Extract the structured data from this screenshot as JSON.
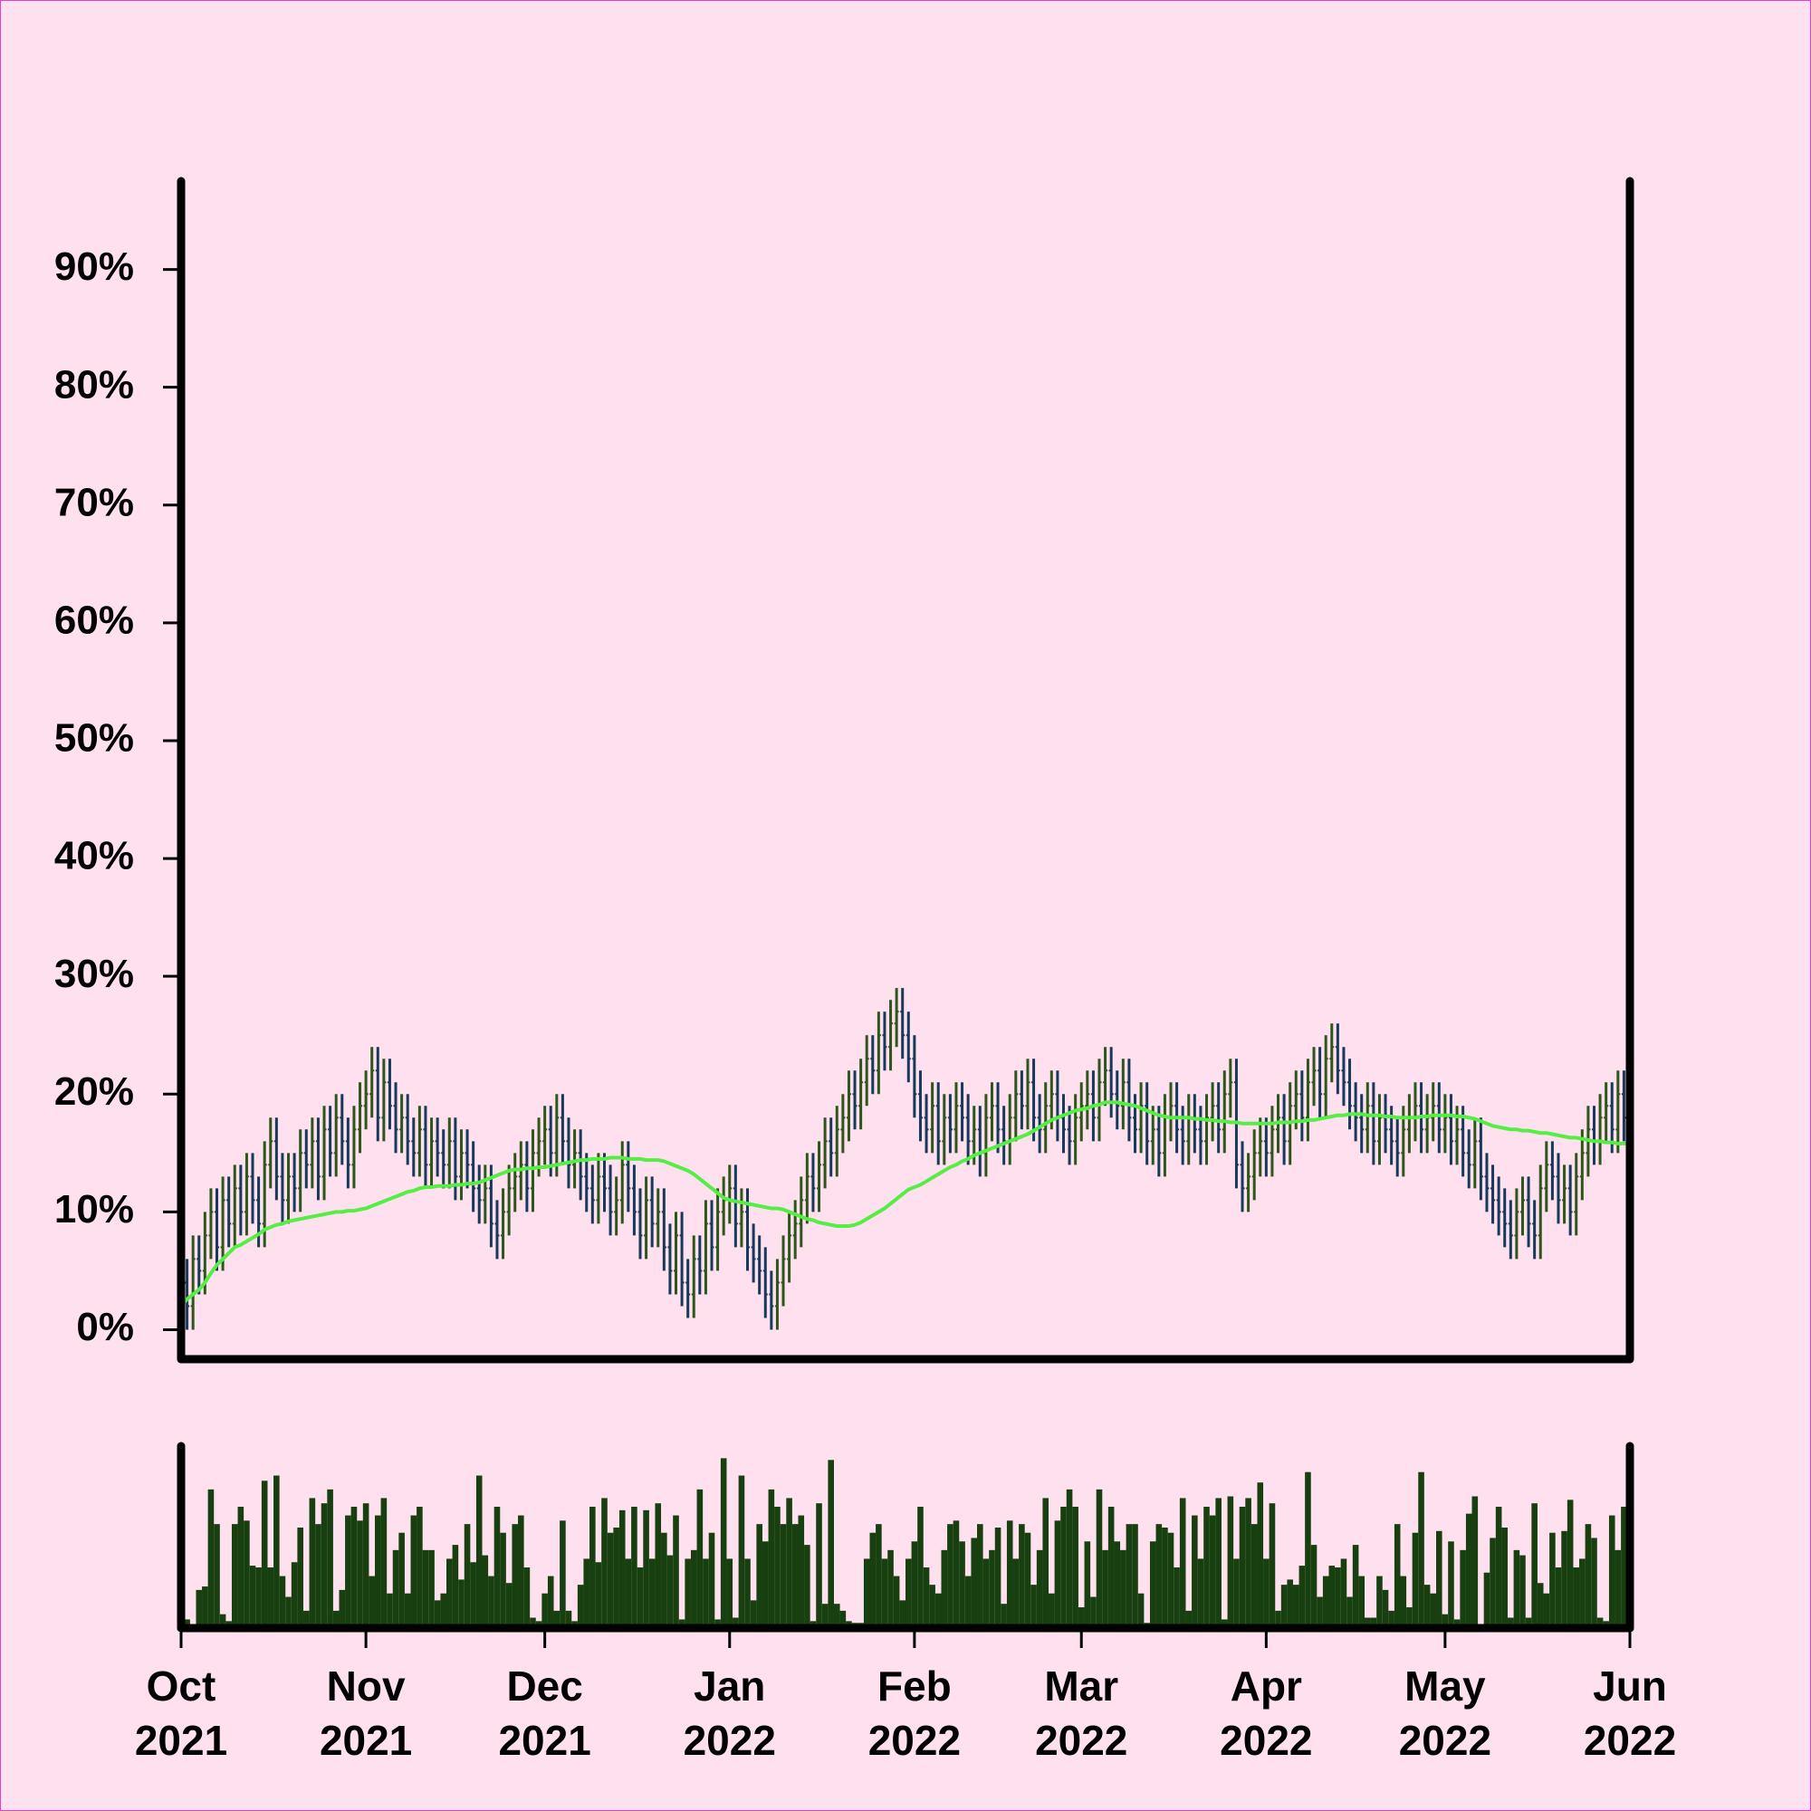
{
  "chart_data": {
    "type": "ohlc",
    "xlim": [
      "2021-10",
      "2022-06"
    ],
    "xticks": [
      {
        "value": "2021-10",
        "label": [
          "Oct",
          "2021"
        ]
      },
      {
        "value": "2021-11",
        "label": [
          "Nov",
          "2021"
        ]
      },
      {
        "value": "2021-12",
        "label": [
          "Dec",
          "2021"
        ]
      },
      {
        "value": "2022-01",
        "label": [
          "Jan",
          "2022"
        ]
      },
      {
        "value": "2022-02",
        "label": [
          "Feb",
          "2022"
        ]
      },
      {
        "value": "2022-03",
        "label": [
          "Mar",
          "2022"
        ]
      },
      {
        "value": "2022-04",
        "label": [
          "Apr",
          "2022"
        ]
      },
      {
        "value": "2022-05",
        "label": [
          "May",
          "2022"
        ]
      },
      {
        "value": "2022-06",
        "label": [
          "Jun",
          "2022"
        ]
      }
    ],
    "ylim": [
      -2.5,
      97.5
    ],
    "yticks": [
      {
        "value": 0,
        "label": "0%"
      },
      {
        "value": 10,
        "label": "10%"
      },
      {
        "value": 20,
        "label": "20%"
      },
      {
        "value": 30,
        "label": "30%"
      },
      {
        "value": 40,
        "label": "40%"
      },
      {
        "value": 50,
        "label": "50%"
      },
      {
        "value": 60,
        "label": "60%"
      },
      {
        "value": 70,
        "label": "70%"
      },
      {
        "value": 80,
        "label": "80%"
      },
      {
        "value": 90,
        "label": "90%"
      }
    ],
    "up_color": "#2c561a",
    "down_color": "#17395a",
    "open": [
      6,
      4,
      2,
      6,
      5,
      8,
      10,
      7,
      11,
      9,
      12,
      10,
      13,
      11,
      9,
      14,
      16,
      13,
      11,
      13,
      12,
      15,
      14,
      16,
      13,
      17,
      15,
      18,
      16,
      14,
      17,
      19,
      20,
      22,
      18,
      21,
      19,
      17,
      18,
      16,
      15,
      17,
      14,
      16,
      15,
      14,
      16,
      13,
      15,
      14,
      12,
      11,
      12,
      9,
      8,
      10,
      12,
      13,
      14,
      12,
      15,
      16,
      17,
      15,
      18,
      16,
      14,
      15,
      13,
      12,
      11,
      13,
      12,
      10,
      11,
      14,
      12,
      10,
      8,
      11,
      9,
      10,
      7,
      5,
      8,
      4,
      3,
      6,
      5,
      9,
      7,
      10,
      11,
      12,
      9,
      10,
      7,
      6,
      5,
      3,
      2,
      4,
      6,
      8,
      9,
      11,
      13,
      12,
      14,
      16,
      15,
      17,
      18,
      20,
      19,
      21,
      23,
      22,
      25,
      24,
      26,
      27,
      25,
      23,
      20,
      18,
      17,
      19,
      16,
      18,
      17,
      19,
      18,
      16,
      17,
      15,
      18,
      19,
      17,
      16,
      18,
      20,
      19,
      21,
      18,
      17,
      19,
      20,
      18,
      17,
      16,
      18,
      19,
      20,
      18,
      21,
      22,
      20,
      19,
      21,
      18,
      17,
      19,
      16,
      17,
      15,
      18,
      19,
      17,
      16,
      18,
      17,
      16,
      18,
      19,
      17,
      20,
      21,
      14,
      12,
      13,
      15,
      16,
      15,
      17,
      18,
      16,
      19,
      20,
      18,
      21,
      22,
      20,
      23,
      24,
      22,
      21,
      19,
      18,
      17,
      19,
      16,
      18,
      17,
      16,
      15,
      17,
      18,
      19,
      17,
      18,
      19,
      17,
      18,
      16,
      17,
      15,
      14,
      16,
      13,
      12,
      11,
      10,
      9,
      8,
      10,
      11,
      9,
      8,
      12,
      14,
      13,
      11,
      12,
      10,
      13,
      15,
      17,
      16,
      18,
      19,
      17,
      20,
      18
    ],
    "high": [
      8,
      6,
      8,
      8,
      10,
      12,
      12,
      13,
      13,
      14,
      14,
      15,
      15,
      13,
      16,
      18,
      18,
      15,
      15,
      15,
      17,
      17,
      18,
      18,
      19,
      19,
      20,
      20,
      18,
      19,
      21,
      22,
      24,
      24,
      23,
      23,
      21,
      20,
      20,
      18,
      19,
      19,
      18,
      18,
      17,
      18,
      18,
      17,
      17,
      16,
      14,
      14,
      14,
      11,
      12,
      14,
      15,
      16,
      16,
      17,
      18,
      19,
      19,
      20,
      20,
      18,
      17,
      17,
      15,
      14,
      15,
      15,
      14,
      13,
      16,
      16,
      14,
      12,
      13,
      13,
      12,
      12,
      9,
      10,
      10,
      6,
      8,
      8,
      11,
      11,
      12,
      13,
      14,
      14,
      12,
      12,
      9,
      8,
      7,
      5,
      6,
      8,
      10,
      11,
      13,
      15,
      15,
      16,
      18,
      18,
      19,
      20,
      22,
      22,
      23,
      25,
      25,
      27,
      27,
      28,
      29,
      29,
      27,
      25,
      22,
      20,
      21,
      21,
      20,
      20,
      21,
      21,
      20,
      19,
      19,
      20,
      21,
      21,
      19,
      20,
      22,
      22,
      23,
      23,
      20,
      21,
      22,
      22,
      20,
      19,
      20,
      21,
      22,
      22,
      23,
      24,
      24,
      22,
      23,
      23,
      20,
      21,
      21,
      19,
      19,
      20,
      21,
      21,
      19,
      20,
      20,
      19,
      20,
      21,
      21,
      22,
      23,
      23,
      16,
      15,
      17,
      18,
      18,
      19,
      20,
      20,
      21,
      22,
      22,
      23,
      24,
      24,
      25,
      26,
      26,
      24,
      23,
      21,
      20,
      21,
      21,
      20,
      20,
      19,
      18,
      19,
      20,
      21,
      21,
      20,
      21,
      21,
      20,
      20,
      19,
      19,
      17,
      18,
      18,
      15,
      14,
      13,
      12,
      11,
      12,
      13,
      13,
      11,
      14,
      16,
      16,
      15,
      14,
      14,
      15,
      17,
      19,
      19,
      20,
      21,
      21,
      22,
      22,
      22
    ],
    "low": [
      2,
      0,
      0,
      3,
      3,
      6,
      5,
      5,
      7,
      7,
      8,
      8,
      9,
      7,
      7,
      12,
      11,
      9,
      9,
      10,
      10,
      12,
      12,
      11,
      11,
      13,
      13,
      14,
      12,
      12,
      15,
      17,
      18,
      16,
      16,
      17,
      15,
      15,
      14,
      13,
      13,
      12,
      12,
      13,
      12,
      12,
      11,
      11,
      12,
      10,
      9,
      9,
      7,
      6,
      6,
      8,
      10,
      11,
      10,
      10,
      13,
      14,
      13,
      13,
      14,
      12,
      12,
      11,
      10,
      9,
      9,
      10,
      8,
      8,
      9,
      10,
      8,
      6,
      6,
      7,
      7,
      5,
      3,
      3,
      2,
      1,
      1,
      3,
      3,
      5,
      5,
      8,
      9,
      7,
      7,
      5,
      4,
      3,
      1,
      0,
      0,
      2,
      4,
      6,
      7,
      9,
      10,
      10,
      12,
      13,
      13,
      15,
      16,
      17,
      17,
      19,
      20,
      20,
      22,
      22,
      24,
      23,
      21,
      18,
      16,
      15,
      15,
      14,
      14,
      15,
      15,
      16,
      14,
      14,
      13,
      13,
      16,
      15,
      14,
      14,
      16,
      17,
      17,
      16,
      15,
      15,
      17,
      16,
      15,
      14,
      14,
      16,
      17,
      16,
      16,
      19,
      18,
      17,
      17,
      16,
      15,
      15,
      14,
      14,
      13,
      13,
      16,
      15,
      14,
      14,
      15,
      14,
      14,
      16,
      15,
      15,
      18,
      12,
      10,
      10,
      11,
      13,
      13,
      13,
      15,
      14,
      14,
      17,
      16,
      16,
      19,
      18,
      18,
      21,
      20,
      19,
      17,
      16,
      15,
      15,
      14,
      14,
      15,
      14,
      13,
      13,
      15,
      16,
      15,
      15,
      16,
      15,
      15,
      14,
      14,
      13,
      12,
      12,
      11,
      10,
      9,
      8,
      7,
      6,
      6,
      8,
      7,
      6,
      6,
      10,
      11,
      9,
      9,
      8,
      8,
      11,
      13,
      14,
      14,
      16,
      15,
      15,
      16,
      16
    ],
    "close": [
      4,
      2,
      6,
      5,
      8,
      10,
      7,
      11,
      9,
      12,
      10,
      13,
      11,
      9,
      14,
      16,
      13,
      11,
      13,
      12,
      15,
      14,
      16,
      13,
      17,
      15,
      18,
      16,
      14,
      17,
      19,
      20,
      22,
      18,
      21,
      19,
      17,
      18,
      16,
      15,
      17,
      14,
      16,
      15,
      14,
      16,
      13,
      15,
      14,
      12,
      11,
      12,
      9,
      8,
      10,
      12,
      13,
      14,
      12,
      15,
      16,
      17,
      15,
      18,
      16,
      14,
      15,
      13,
      12,
      11,
      13,
      12,
      10,
      11,
      14,
      12,
      10,
      8,
      11,
      9,
      10,
      7,
      5,
      8,
      4,
      3,
      6,
      5,
      9,
      7,
      10,
      11,
      12,
      9,
      10,
      7,
      6,
      5,
      3,
      2,
      4,
      6,
      8,
      9,
      11,
      13,
      12,
      14,
      16,
      15,
      17,
      18,
      20,
      19,
      21,
      23,
      22,
      25,
      24,
      26,
      27,
      25,
      23,
      20,
      18,
      17,
      19,
      16,
      18,
      17,
      19,
      18,
      16,
      17,
      15,
      18,
      19,
      17,
      16,
      18,
      20,
      19,
      21,
      18,
      17,
      19,
      20,
      18,
      17,
      16,
      18,
      19,
      20,
      18,
      21,
      22,
      20,
      19,
      21,
      18,
      17,
      19,
      16,
      17,
      15,
      18,
      19,
      17,
      16,
      18,
      17,
      16,
      18,
      19,
      17,
      20,
      21,
      14,
      12,
      13,
      15,
      16,
      15,
      17,
      18,
      16,
      19,
      20,
      18,
      21,
      22,
      20,
      23,
      24,
      22,
      21,
      19,
      18,
      17,
      19,
      16,
      18,
      17,
      16,
      15,
      17,
      18,
      19,
      17,
      18,
      19,
      17,
      18,
      16,
      17,
      15,
      14,
      16,
      13,
      12,
      11,
      10,
      9,
      8,
      10,
      11,
      9,
      8,
      12,
      14,
      13,
      11,
      12,
      10,
      13,
      15,
      17,
      16,
      18,
      19,
      17,
      20,
      18,
      20
    ],
    "ma": {
      "color": "#55ee44",
      "values": [
        2.0,
        2.6,
        3.0,
        3.4,
        4.0,
        4.8,
        5.5,
        6.0,
        6.5,
        7.0,
        7.2,
        7.5,
        7.8,
        8.1,
        8.5,
        8.7,
        8.9,
        9.0,
        9.2,
        9.3,
        9.4,
        9.5,
        9.6,
        9.7,
        9.8,
        9.9,
        10.0,
        10.0,
        10.1,
        10.1,
        10.2,
        10.3,
        10.5,
        10.7,
        10.9,
        11.1,
        11.3,
        11.5,
        11.7,
        11.8,
        12.0,
        12.1,
        12.1,
        12.2,
        12.2,
        12.2,
        12.3,
        12.3,
        12.4,
        12.4,
        12.5,
        12.7,
        12.9,
        13.1,
        13.3,
        13.5,
        13.6,
        13.6,
        13.7,
        13.7,
        13.8,
        13.8,
        13.9,
        14.0,
        14.1,
        14.2,
        14.3,
        14.4,
        14.4,
        14.5,
        14.5,
        14.5,
        14.6,
        14.6,
        14.6,
        14.5,
        14.5,
        14.5,
        14.4,
        14.4,
        14.4,
        14.3,
        14.1,
        13.9,
        13.7,
        13.5,
        13.2,
        12.8,
        12.4,
        12.0,
        11.6,
        11.2,
        11.0,
        10.9,
        10.8,
        10.7,
        10.6,
        10.5,
        10.4,
        10.3,
        10.3,
        10.2,
        10.0,
        9.8,
        9.6,
        9.4,
        9.3,
        9.1,
        9.0,
        8.9,
        8.8,
        8.8,
        8.8,
        8.9,
        9.1,
        9.4,
        9.7,
        10.0,
        10.3,
        10.7,
        11.1,
        11.5,
        11.9,
        12.1,
        12.3,
        12.6,
        12.9,
        13.2,
        13.5,
        13.8,
        14.0,
        14.3,
        14.5,
        14.8,
        15.0,
        15.2,
        15.4,
        15.6,
        15.8,
        16.0,
        16.2,
        16.4,
        16.6,
        16.9,
        17.2,
        17.5,
        17.8,
        18.0,
        18.2,
        18.4,
        18.6,
        18.7,
        18.8,
        19.0,
        19.1,
        19.3,
        19.3,
        19.3,
        19.2,
        19.1,
        19.0,
        18.8,
        18.6,
        18.4,
        18.2,
        18.1,
        18.0,
        18.0,
        18.0,
        18.0,
        17.9,
        17.9,
        17.8,
        17.8,
        17.7,
        17.7,
        17.6,
        17.6,
        17.5,
        17.5,
        17.5,
        17.5,
        17.5,
        17.5,
        17.6,
        17.6,
        17.6,
        17.7,
        17.7,
        17.8,
        17.8,
        17.9,
        18.0,
        18.1,
        18.2,
        18.2,
        18.3,
        18.3,
        18.3,
        18.2,
        18.2,
        18.2,
        18.1,
        18.1,
        18.0,
        18.0,
        18.0,
        18.0,
        18.1,
        18.1,
        18.2,
        18.2,
        18.2,
        18.2,
        18.1,
        18.1,
        18.0,
        17.9,
        17.7,
        17.5,
        17.3,
        17.2,
        17.1,
        17.0,
        17.0,
        16.9,
        16.9,
        16.8,
        16.7,
        16.7,
        16.6,
        16.5,
        16.4,
        16.3,
        16.3,
        16.2,
        16.1,
        16.0,
        16.0,
        15.9,
        15.9,
        15.8,
        15.8,
        15.8
      ]
    },
    "volume": {
      "color": "#173f10",
      "ylim": [
        0,
        105
      ],
      "values": [
        95,
        5,
        2,
        22,
        24,
        80,
        60,
        8,
        4,
        60,
        70,
        62,
        36,
        35,
        85,
        35,
        88,
        30,
        18,
        38,
        58,
        10,
        75,
        60,
        72,
        80,
        10,
        22,
        65,
        70,
        62,
        72,
        30,
        65,
        75,
        20,
        45,
        55,
        20,
        65,
        70,
        45,
        45,
        16,
        20,
        40,
        48,
        28,
        60,
        38,
        88,
        42,
        30,
        70,
        55,
        26,
        60,
        65,
        35,
        6,
        4,
        20,
        30,
        10,
        62,
        10,
        4,
        25,
        40,
        70,
        38,
        75,
        55,
        58,
        68,
        40,
        70,
        35,
        68,
        40,
        72,
        55,
        42,
        65,
        5,
        40,
        45,
        80,
        40,
        55,
        5,
        98,
        40,
        6,
        88,
        40,
        16,
        60,
        50,
        80,
        70,
        60,
        75,
        60,
        65,
        48,
        4,
        72,
        14,
        97,
        14,
        10,
        4,
        3,
        3,
        40,
        55,
        60,
        40,
        45,
        30,
        16,
        40,
        50,
        70,
        35,
        25,
        20,
        45,
        60,
        62,
        50,
        30,
        52,
        60,
        40,
        45,
        58,
        14,
        62,
        40,
        60,
        55,
        25,
        45,
        75,
        20,
        62,
        70,
        80,
        70,
        12,
        50,
        18,
        80,
        45,
        70,
        50,
        45,
        60,
        60,
        20,
        3,
        50,
        60,
        58,
        55,
        35,
        75,
        10,
        65,
        40,
        70,
        65,
        75,
        5,
        76,
        40,
        70,
        75,
        60,
        84,
        40,
        72,
        10,
        25,
        28,
        25,
        36,
        90,
        48,
        18,
        30,
        36,
        35,
        40,
        18,
        48,
        30,
        6,
        6,
        30,
        22,
        10,
        60,
        30,
        12,
        55,
        90,
        25,
        20,
        56,
        8,
        50,
        5,
        45,
        66,
        76,
        2,
        32,
        52,
        70,
        58,
        6,
        45,
        42,
        6,
        72,
        26,
        20,
        55,
        35,
        56,
        74,
        35,
        40,
        60,
        52,
        6,
        4,
        65,
        45,
        70,
        35
      ]
    }
  }
}
